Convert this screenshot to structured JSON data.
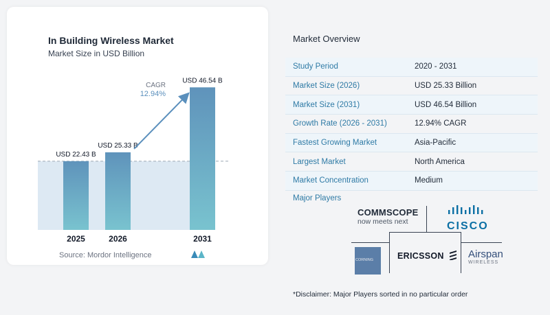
{
  "chart_data": {
    "type": "bar",
    "title": "In Building Wireless Market",
    "subtitle": "Market Size in USD Billion",
    "categories": [
      "2025",
      "2026",
      "2031"
    ],
    "values": [
      22.43,
      25.33,
      46.54
    ],
    "value_labels": [
      "USD 22.43 B",
      "USD 25.33 B",
      "USD 46.54 B"
    ],
    "cagr_label": "CAGR",
    "cagr_value": "12.94%",
    "ylim": [
      0,
      50
    ],
    "grid": false,
    "source": "Source:  Mordor Intelligence",
    "colors": {
      "bar_top": "#5f93bb",
      "bar_bottom": "#79c3cf",
      "shade": "#dde9f3",
      "arrow": "#5a8fbc"
    }
  },
  "overview": {
    "title": "Market Overview",
    "rows": [
      {
        "label": "Study Period",
        "value": "2020 - 2031"
      },
      {
        "label": "Market Size (2026)",
        "value": "USD 25.33 Billion"
      },
      {
        "label": "Market Size (2031)",
        "value": "USD 46.54 Billion"
      },
      {
        "label": "Growth Rate (2026 - 2031)",
        "value": "12.94% CAGR"
      },
      {
        "label": "Fastest Growing Market",
        "value": "Asia-Pacific"
      },
      {
        "label": "Largest Market",
        "value": "North America"
      },
      {
        "label": "Market Concentration",
        "value": "Medium"
      }
    ]
  },
  "players": {
    "title": "Major Players",
    "commscope_name": "COMMSCOPE",
    "commscope_tag": "now meets next",
    "cisco_name": "CISCO",
    "ericsson_name": "ERICSSON",
    "corning_name": "CORNING",
    "airspan_name": "Airspan",
    "airspan_tag": "WIRELESS"
  },
  "disclaimer": "*Disclaimer: Major Players sorted in no particular order"
}
